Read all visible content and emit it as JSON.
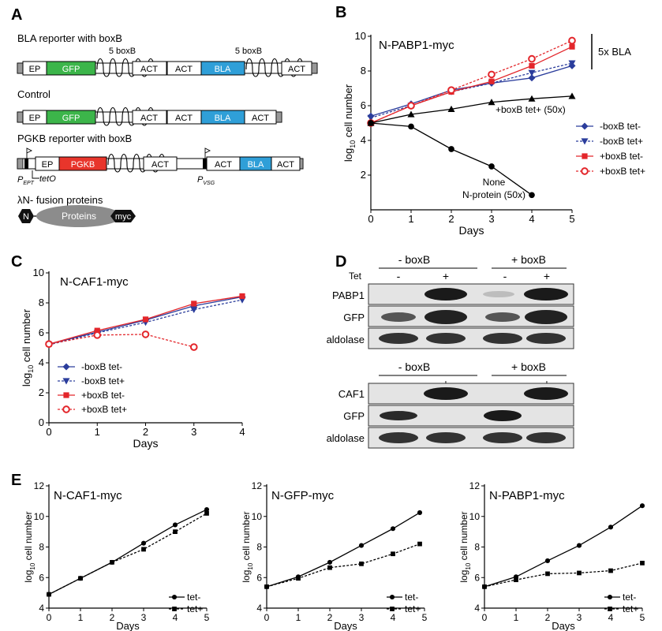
{
  "panel_labels": {
    "A": "A",
    "B": "B",
    "C": "C",
    "D": "D",
    "E": "E"
  },
  "panelA": {
    "reporter1_title": "BLA reporter with boxB",
    "control_title": "Control",
    "reporter2_title": "PGKB reporter with boxB",
    "fusion_title": "λN- fusion proteins",
    "box_label": "5 boxB",
    "ep": "EP",
    "gfp": "GFP",
    "act": "ACT",
    "bla": "BLA",
    "pgkb": "PGKB",
    "p_ept_main": "P",
    "p_ept_sub": "EPT",
    "teto": "tetO",
    "p_vsg_main": "P",
    "p_vsg_sub": "VSG",
    "fusion_n": "N",
    "fusion_proteins": "Proteins",
    "fusion_myc": "myc",
    "colors": {
      "gfp": "#3cb54a",
      "bla": "#2f9fd8",
      "pgkb": "#e8352b",
      "oval": "#8c8c8c"
    }
  },
  "panelD": {
    "top": {
      "boxb_minus": "- boxB",
      "boxb_plus": "+ boxB",
      "tet": "Tet",
      "minus": "-",
      "plus": "+",
      "rows": [
        "PABP1",
        "GFP",
        "aldolase"
      ]
    },
    "bottom": {
      "boxb_minus": "- boxB",
      "boxb_plus": "+ boxB",
      "minus": "-",
      "plus": "+",
      "rows": [
        "CAF1",
        "GFP",
        "aldolase"
      ]
    }
  },
  "chart_data": [
    {
      "type": "line",
      "panel": "B",
      "title": "N-PABP1-myc",
      "xlabel": "Days",
      "ylabel_main": "log",
      "ylabel_sub": "10",
      "ylabel_rest": " cell number",
      "xlim": [
        0,
        5
      ],
      "ylim": [
        0,
        10
      ],
      "xticks": [
        0,
        1,
        2,
        3,
        4,
        5
      ],
      "yticks": [
        2,
        4,
        6,
        8,
        10
      ],
      "annotations": {
        "bla_bar": "5x BLA",
        "boxb_tet": "+boxB  tet+ (50x)",
        "none_line1": "None",
        "none_line2": "N-protein (50x)"
      },
      "series": [
        {
          "name": "-boxB  tet-",
          "x": [
            0,
            1,
            2,
            3,
            4,
            5
          ],
          "y": [
            5.4,
            6.1,
            6.9,
            7.3,
            7.6,
            8.3
          ],
          "color": "#2b3d9c",
          "dash": false,
          "marker": "diamond"
        },
        {
          "name": "-boxB  tet+",
          "x": [
            0,
            1,
            2,
            3,
            4,
            5
          ],
          "y": [
            5.3,
            6.0,
            6.8,
            7.3,
            7.9,
            8.45
          ],
          "color": "#2b3d9c",
          "dash": true,
          "marker": "tri-down"
        },
        {
          "name": "+boxB  tet-",
          "x": [
            0,
            1,
            2,
            3,
            4,
            5
          ],
          "y": [
            5.0,
            6.0,
            6.8,
            7.4,
            8.3,
            9.4
          ],
          "color": "#e3262b",
          "dash": false,
          "marker": "square"
        },
        {
          "name": "+boxB  tet+",
          "x": [
            0,
            1,
            2,
            3,
            4,
            5
          ],
          "y": [
            5.0,
            6.0,
            6.9,
            7.8,
            8.7,
            9.75
          ],
          "color": "#e3262b",
          "dash": true,
          "marker": "open-circle"
        },
        {
          "x": [
            0,
            1,
            2,
            3,
            4,
            5
          ],
          "y": [
            5.0,
            5.5,
            5.8,
            6.2,
            6.4,
            6.55
          ],
          "color": "#000000",
          "dash": false,
          "marker": "triangle"
        },
        {
          "x": [
            0,
            1,
            2,
            3,
            4
          ],
          "y": [
            5.0,
            4.8,
            3.5,
            2.5,
            0.85
          ],
          "color": "#000000",
          "dash": false,
          "marker": "circle"
        }
      ],
      "legend_placement": "right"
    },
    {
      "type": "line",
      "panel": "C",
      "title": "N-CAF1-myc",
      "xlabel": "Days",
      "ylabel_main": "log",
      "ylabel_sub": "10",
      "ylabel_rest": " cell number",
      "xlim": [
        0,
        4
      ],
      "ylim": [
        0,
        10
      ],
      "xticks": [
        0,
        1,
        2,
        3,
        4
      ],
      "yticks": [
        0,
        2,
        4,
        6,
        8,
        10
      ],
      "series": [
        {
          "name": "-boxB  tet-",
          "x": [
            0,
            1,
            2,
            3,
            4
          ],
          "y": [
            5.25,
            6.05,
            6.85,
            7.8,
            8.4
          ],
          "color": "#2b3d9c",
          "dash": false,
          "marker": "diamond"
        },
        {
          "name": "-boxB  tet+",
          "x": [
            0,
            1,
            2,
            3,
            4
          ],
          "y": [
            5.2,
            6.0,
            6.7,
            7.55,
            8.2
          ],
          "color": "#2b3d9c",
          "dash": true,
          "marker": "tri-down"
        },
        {
          "name": "+boxB  tet-",
          "x": [
            0,
            1,
            2,
            3,
            4
          ],
          "y": [
            5.25,
            6.15,
            6.9,
            7.95,
            8.45
          ],
          "color": "#e3262b",
          "dash": false,
          "marker": "square"
        },
        {
          "name": "+boxB  tet+",
          "x": [
            0,
            1,
            2,
            3
          ],
          "y": [
            5.25,
            5.85,
            5.9,
            5.05
          ],
          "color": "#e3262b",
          "dash": true,
          "marker": "open-circle"
        }
      ],
      "legend_placement": "bottom-left"
    },
    {
      "type": "line",
      "panel": "E1",
      "title": "N-CAF1-myc",
      "xlabel": "Days",
      "ylabel_main": "log",
      "ylabel_sub": "10",
      "ylabel_rest": " cell number",
      "xlim": [
        0,
        5
      ],
      "ylim": [
        4,
        12
      ],
      "xticks": [
        0,
        1,
        2,
        3,
        4,
        5
      ],
      "yticks": [
        4,
        6,
        8,
        10,
        12
      ],
      "series": [
        {
          "name": "tet-",
          "x": [
            0,
            1,
            2,
            3,
            4,
            5
          ],
          "y": [
            4.9,
            5.95,
            7.0,
            8.25,
            9.45,
            10.45
          ],
          "color": "#000000",
          "dash": false,
          "marker": "circle"
        },
        {
          "name": "tet+",
          "x": [
            0,
            1,
            2,
            3,
            4,
            5
          ],
          "y": [
            4.9,
            5.95,
            7.0,
            7.85,
            9.0,
            10.2
          ],
          "color": "#000000",
          "dash": true,
          "marker": "square"
        }
      ],
      "legend_placement": "bottom-right"
    },
    {
      "type": "line",
      "panel": "E2",
      "title": "N-GFP-myc",
      "xlabel": "Days",
      "ylabel_main": "log",
      "ylabel_sub": "10",
      "ylabel_rest": " cell number",
      "xlim": [
        0,
        5
      ],
      "ylim": [
        4,
        12
      ],
      "xticks": [
        0,
        1,
        2,
        3,
        4,
        5
      ],
      "yticks": [
        4,
        6,
        8,
        10,
        12
      ],
      "series": [
        {
          "name": "tet-",
          "x": [
            0,
            1,
            2,
            3,
            4,
            4.85
          ],
          "y": [
            5.4,
            6.05,
            7.0,
            8.1,
            9.2,
            10.25
          ],
          "color": "#000000",
          "dash": false,
          "marker": "circle"
        },
        {
          "name": "tet+",
          "x": [
            0,
            1,
            2,
            3,
            4,
            4.85
          ],
          "y": [
            5.4,
            5.95,
            6.65,
            6.9,
            7.55,
            8.2
          ],
          "color": "#000000",
          "dash": true,
          "marker": "square"
        }
      ],
      "legend_placement": "bottom-right"
    },
    {
      "type": "line",
      "panel": "E3",
      "title": "N-PABP1-myc",
      "xlabel": "Days",
      "ylabel_main": "log",
      "ylabel_sub": "10",
      "ylabel_rest": " cell number",
      "xlim": [
        0,
        5
      ],
      "ylim": [
        4,
        12
      ],
      "xticks": [
        0,
        1,
        2,
        3,
        4,
        5
      ],
      "yticks": [
        4,
        6,
        8,
        10,
        12
      ],
      "series": [
        {
          "name": "tet-",
          "x": [
            0,
            1,
            2,
            3,
            4,
            5
          ],
          "y": [
            5.4,
            6.05,
            7.1,
            8.1,
            9.3,
            10.7
          ],
          "color": "#000000",
          "dash": false,
          "marker": "circle"
        },
        {
          "name": "tet+",
          "x": [
            0,
            1,
            2,
            3,
            4,
            5
          ],
          "y": [
            5.4,
            5.85,
            6.25,
            6.3,
            6.45,
            6.95
          ],
          "color": "#000000",
          "dash": true,
          "marker": "square"
        }
      ],
      "legend_placement": "bottom-right"
    }
  ]
}
